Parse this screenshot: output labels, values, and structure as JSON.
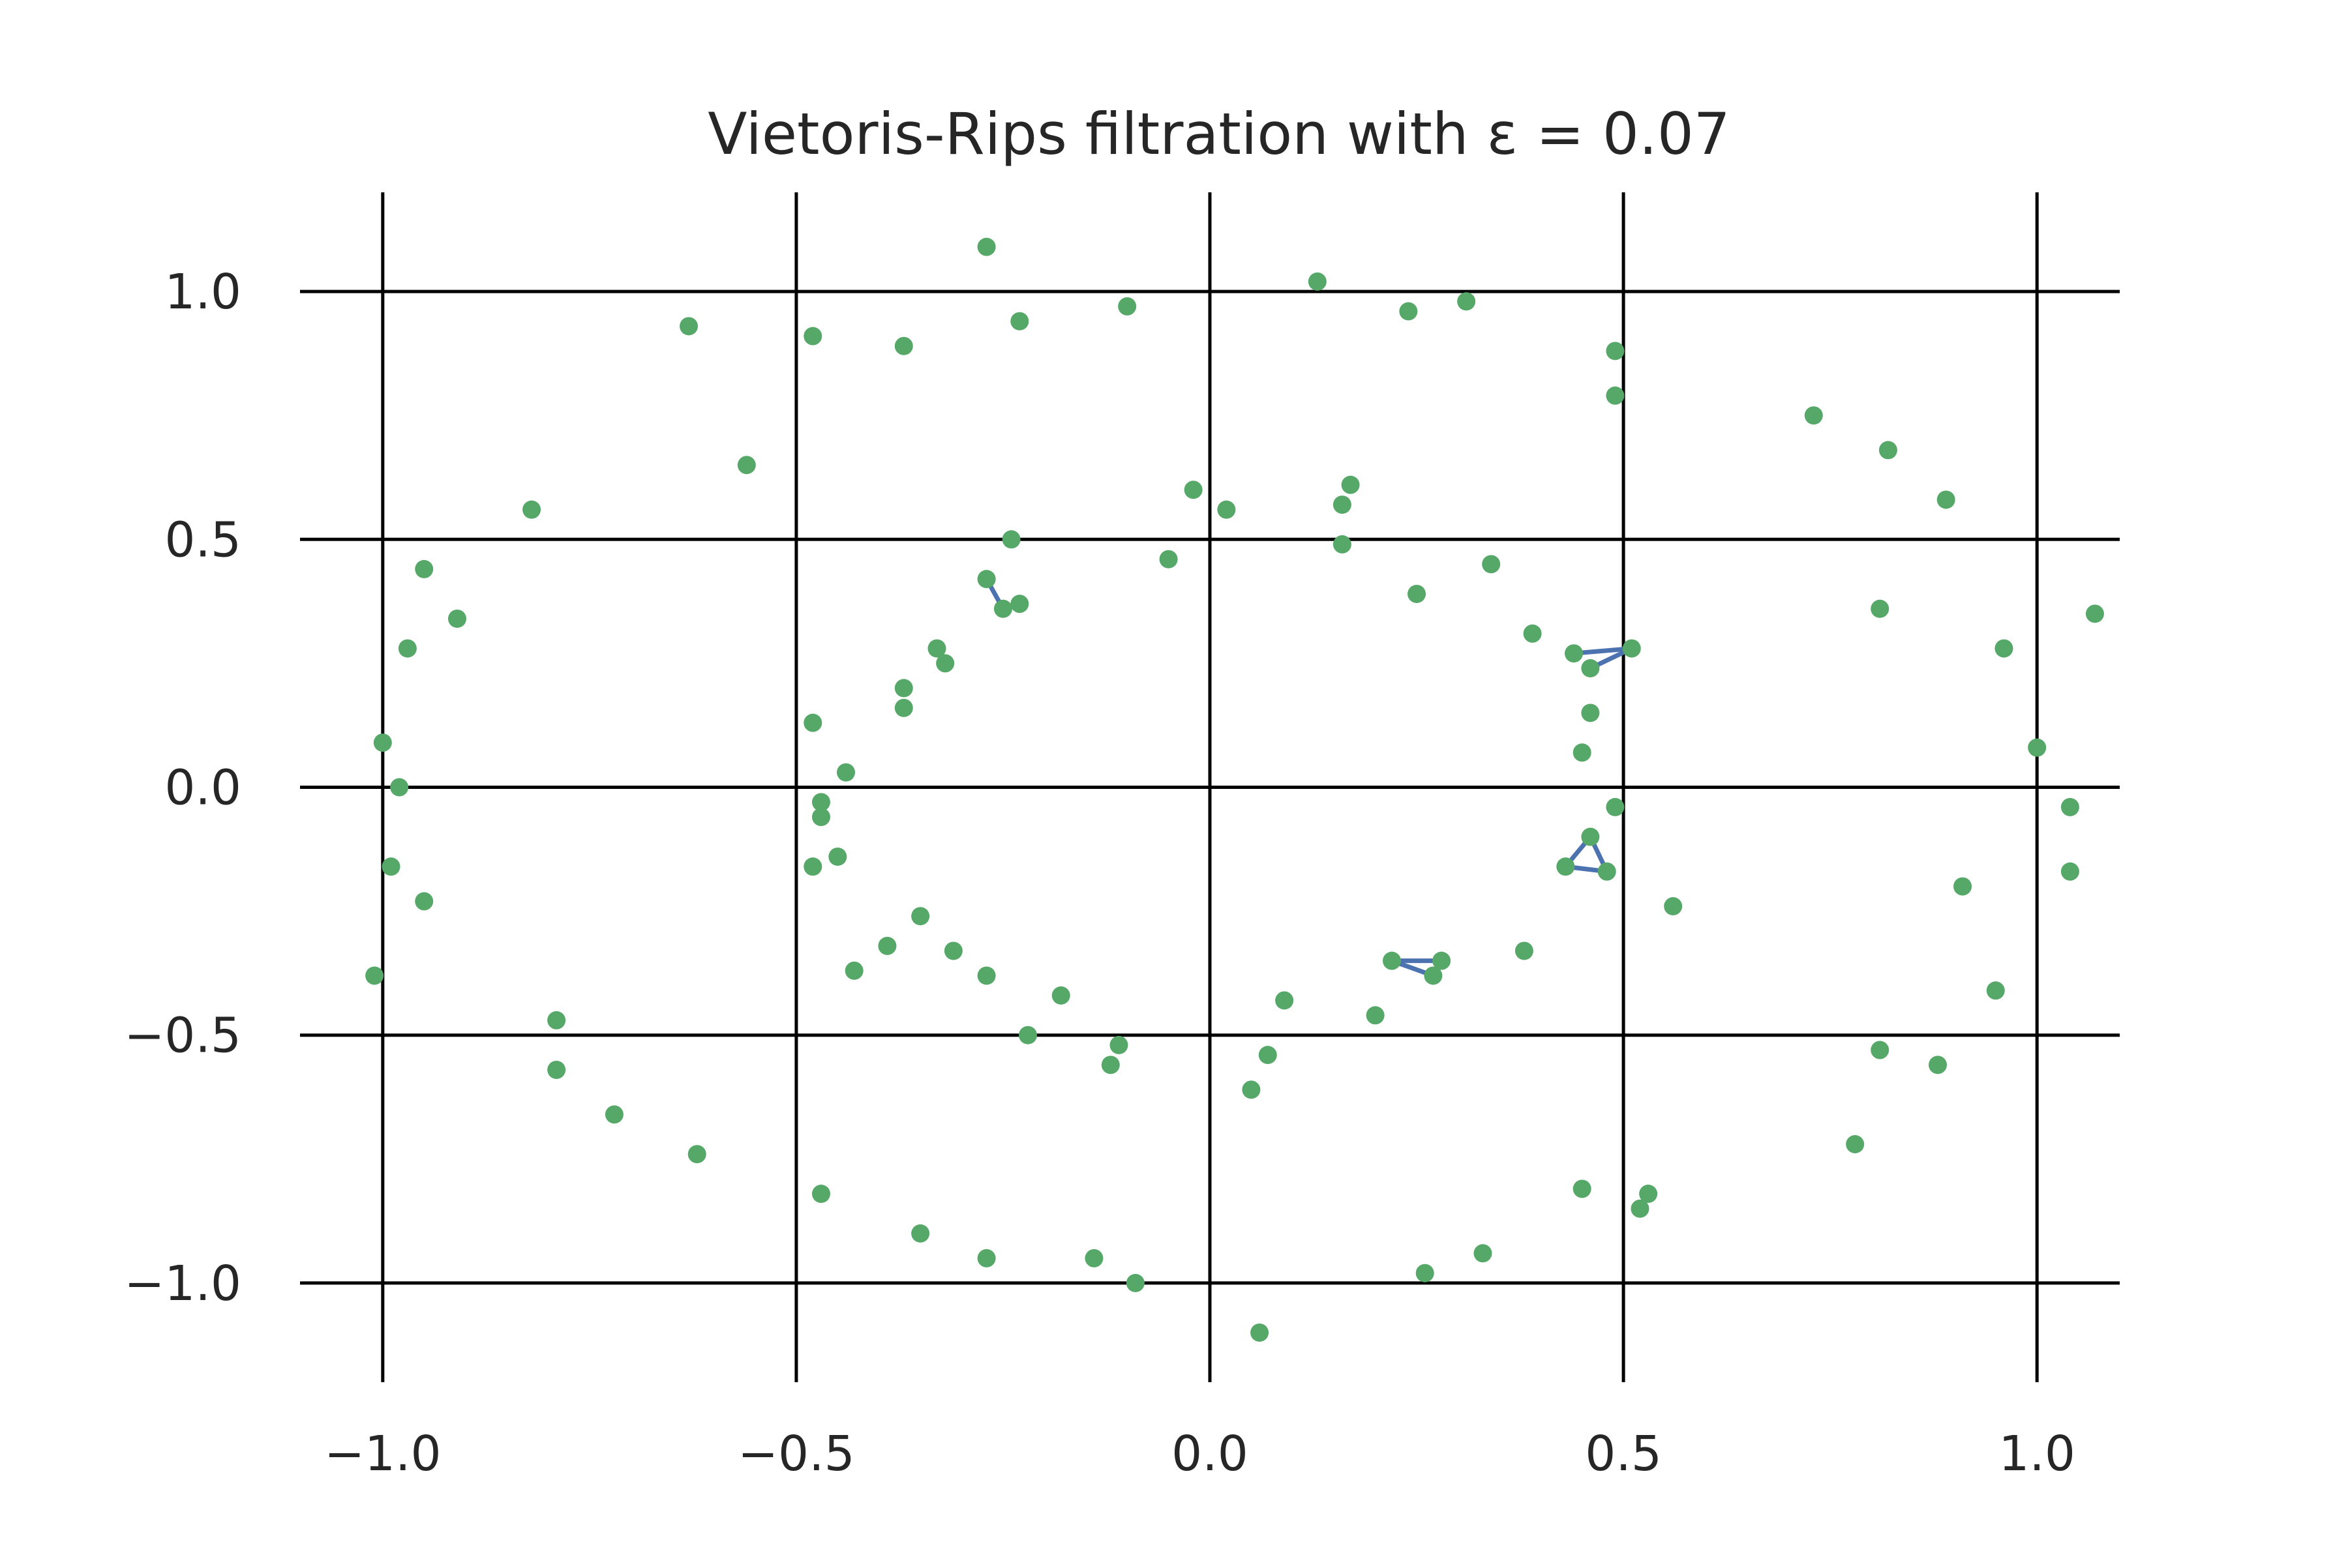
{
  "chart_data": {
    "type": "scatter",
    "title": "Vietoris-Rips filtration with ε = 0.07",
    "xlabel": "",
    "ylabel": "",
    "xlim": [
      -1.1,
      1.1
    ],
    "ylim": [
      -1.2,
      1.2
    ],
    "grid": true,
    "xticks": [
      -1.0,
      -0.5,
      0.0,
      0.5,
      1.0
    ],
    "yticks": [
      1.0,
      0.5,
      0.0,
      -0.5,
      -1.0
    ],
    "xtick_labels": [
      "−1.0",
      "−0.5",
      "0.0",
      "0.5",
      "1.0"
    ],
    "ytick_labels": [
      "1.0",
      "0.5",
      "0.0",
      "−0.5",
      "−1.0"
    ],
    "colors": {
      "points": "#55a868",
      "edges": "#4c72b0",
      "grid": "#000000",
      "text": "#262626"
    },
    "points": [
      [
        -0.27,
        1.09
      ],
      [
        -0.63,
        0.93
      ],
      [
        -0.48,
        0.91
      ],
      [
        -0.37,
        0.89
      ],
      [
        -0.23,
        0.94
      ],
      [
        -0.1,
        0.97
      ],
      [
        0.13,
        1.02
      ],
      [
        0.24,
        0.96
      ],
      [
        0.31,
        0.98
      ],
      [
        0.49,
        0.88
      ],
      [
        0.49,
        0.79
      ],
      [
        0.73,
        0.75
      ],
      [
        0.82,
        0.68
      ],
      [
        0.89,
        0.58
      ],
      [
        1.07,
        0.35
      ],
      [
        0.81,
        0.36
      ],
      [
        0.96,
        0.28
      ],
      [
        1.0,
        0.08
      ],
      [
        1.04,
        -0.04
      ],
      [
        1.04,
        -0.17
      ],
      [
        0.91,
        -0.2
      ],
      [
        0.95,
        -0.41
      ],
      [
        0.81,
        -0.53
      ],
      [
        0.88,
        -0.56
      ],
      [
        0.78,
        -0.72
      ],
      [
        -0.56,
        0.65
      ],
      [
        -0.82,
        0.56
      ],
      [
        -0.95,
        0.44
      ],
      [
        -0.91,
        0.34
      ],
      [
        -0.97,
        0.28
      ],
      [
        -1.0,
        0.09
      ],
      [
        -0.98,
        0.0
      ],
      [
        -0.99,
        -0.16
      ],
      [
        -0.95,
        -0.23
      ],
      [
        -1.01,
        -0.38
      ],
      [
        -0.79,
        -0.47
      ],
      [
        -0.79,
        -0.57
      ],
      [
        -0.72,
        -0.66
      ],
      [
        -0.62,
        -0.74
      ],
      [
        -0.47,
        -0.82
      ],
      [
        -0.35,
        -0.9
      ],
      [
        -0.27,
        -0.95
      ],
      [
        -0.14,
        -0.95
      ],
      [
        -0.09,
        -1.0
      ],
      [
        0.06,
        -1.1
      ],
      [
        0.26,
        -0.98
      ],
      [
        0.33,
        -0.94
      ],
      [
        0.45,
        -0.81
      ],
      [
        0.53,
        -0.82
      ],
      [
        0.52,
        -0.85
      ],
      [
        -0.02,
        0.6
      ],
      [
        0.02,
        0.56
      ],
      [
        -0.05,
        0.46
      ],
      [
        0.16,
        0.57
      ],
      [
        0.17,
        0.61
      ],
      [
        0.16,
        0.49
      ],
      [
        -0.24,
        0.5
      ],
      [
        -0.27,
        0.42
      ],
      [
        -0.25,
        0.36
      ],
      [
        -0.23,
        0.37
      ],
      [
        -0.33,
        0.28
      ],
      [
        -0.32,
        0.25
      ],
      [
        -0.37,
        0.2
      ],
      [
        -0.37,
        0.16
      ],
      [
        0.25,
        0.39
      ],
      [
        0.34,
        0.45
      ],
      [
        0.39,
        0.31
      ],
      [
        0.44,
        0.27
      ],
      [
        0.46,
        0.24
      ],
      [
        0.51,
        0.28
      ],
      [
        0.46,
        0.15
      ],
      [
        0.45,
        0.07
      ],
      [
        -0.48,
        0.13
      ],
      [
        -0.44,
        0.03
      ],
      [
        -0.47,
        -0.03
      ],
      [
        -0.47,
        -0.06
      ],
      [
        -0.48,
        -0.16
      ],
      [
        -0.45,
        -0.14
      ],
      [
        0.49,
        -0.04
      ],
      [
        0.46,
        -0.1
      ],
      [
        0.43,
        -0.16
      ],
      [
        0.48,
        -0.17
      ],
      [
        0.56,
        -0.24
      ],
      [
        -0.35,
        -0.26
      ],
      [
        -0.39,
        -0.32
      ],
      [
        -0.43,
        -0.37
      ],
      [
        -0.31,
        -0.33
      ],
      [
        -0.27,
        -0.38
      ],
      [
        -0.18,
        -0.42
      ],
      [
        -0.22,
        -0.5
      ],
      [
        -0.11,
        -0.52
      ],
      [
        -0.12,
        -0.56
      ],
      [
        0.09,
        -0.43
      ],
      [
        0.07,
        -0.54
      ],
      [
        0.05,
        -0.61
      ],
      [
        0.2,
        -0.46
      ],
      [
        0.22,
        -0.35
      ],
      [
        0.28,
        -0.35
      ],
      [
        0.27,
        -0.38
      ],
      [
        0.38,
        -0.33
      ]
    ],
    "edges": [
      [
        [
          -0.27,
          0.42
        ],
        [
          -0.25,
          0.36
        ]
      ],
      [
        [
          -0.25,
          0.36
        ],
        [
          -0.23,
          0.37
        ]
      ],
      [
        [
          0.44,
          0.27
        ],
        [
          0.51,
          0.28
        ]
      ],
      [
        [
          0.46,
          0.24
        ],
        [
          0.51,
          0.28
        ]
      ],
      [
        [
          0.43,
          -0.16
        ],
        [
          0.46,
          -0.1
        ]
      ],
      [
        [
          0.43,
          -0.16
        ],
        [
          0.48,
          -0.17
        ]
      ],
      [
        [
          0.46,
          -0.1
        ],
        [
          0.48,
          -0.17
        ]
      ],
      [
        [
          0.22,
          -0.35
        ],
        [
          0.28,
          -0.35
        ]
      ],
      [
        [
          0.22,
          -0.35
        ],
        [
          0.27,
          -0.38
        ]
      ]
    ]
  }
}
